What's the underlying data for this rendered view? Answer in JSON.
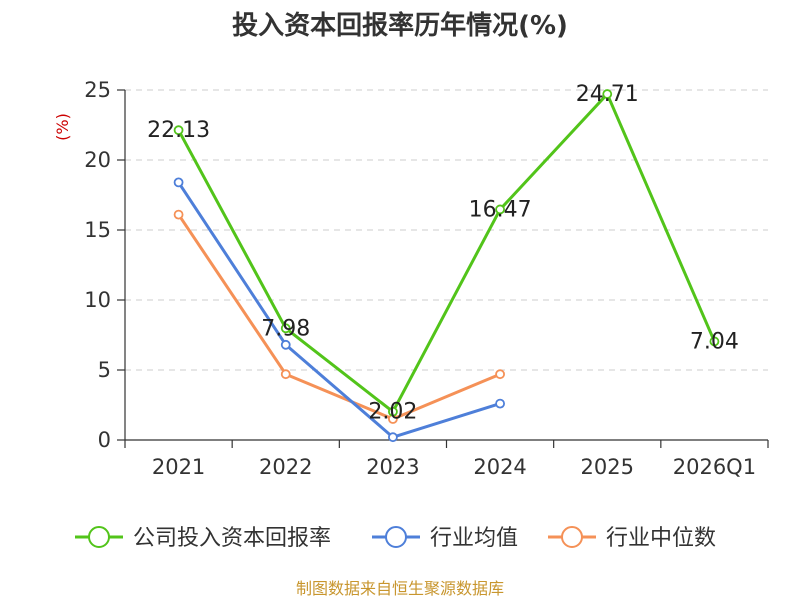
{
  "chart_data": {
    "type": "line",
    "title": "投入资本回报率历年情况(%)",
    "ylabel": "(%)",
    "categories": [
      "2021",
      "2022",
      "2023",
      "2024",
      "2025",
      "2026Q1"
    ],
    "ylim": [
      0,
      25
    ],
    "yticks": [
      0,
      5,
      10,
      15,
      20,
      25
    ],
    "grid": true,
    "legend_position": "bottom",
    "series": [
      {
        "name": "公司投入资本回报率",
        "color": "#52c41a",
        "values": [
          22.13,
          7.98,
          2.02,
          16.47,
          24.71,
          7.04
        ],
        "labels": [
          "22.13",
          "7.98",
          "2.02",
          "16.47",
          "24.71",
          "7.04"
        ]
      },
      {
        "name": "行业均值",
        "color": "#4e7fd9",
        "values": [
          18.4,
          6.8,
          0.2,
          2.6,
          null,
          null
        ]
      },
      {
        "name": "行业中位数",
        "color": "#f59157",
        "values": [
          16.1,
          4.7,
          1.5,
          4.7,
          null,
          null
        ]
      }
    ]
  },
  "source": "制图数据来自恒生聚源数据库"
}
